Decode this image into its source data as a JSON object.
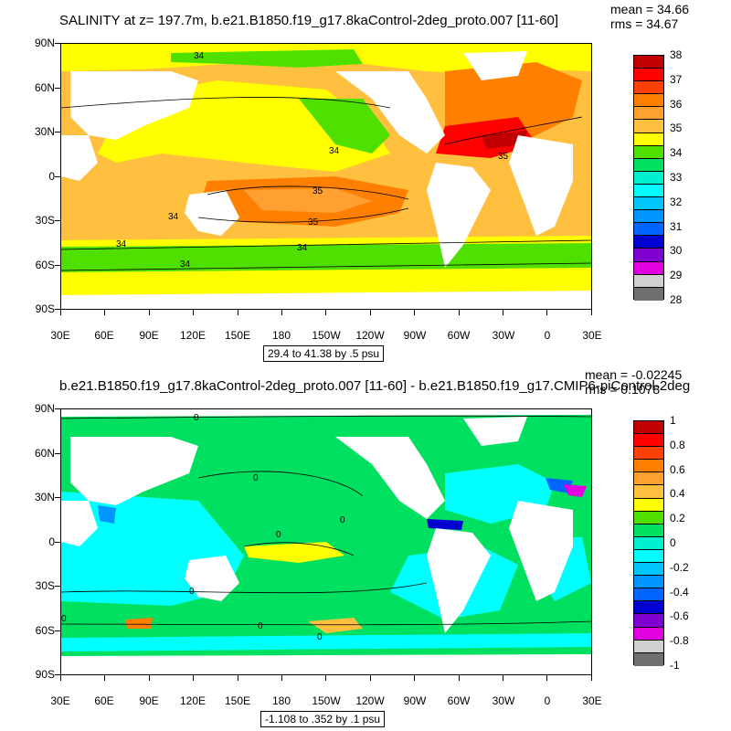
{
  "panel_top": {
    "title": "SALINITY at z= 197.7m, b.e21.B1850.f19_g17.8kaControl-2deg_proto.007 [11-60]",
    "mean_label": "mean = 34.66",
    "rms_label": "rms = 34.67",
    "range_label": "29.4 to 41.38 by .5 psu",
    "y_ticks": [
      "90N",
      "60N",
      "30N",
      "0",
      "30S",
      "60S",
      "90S"
    ],
    "x_ticks": [
      "30E",
      "60E",
      "90E",
      "120E",
      "150E",
      "180",
      "150W",
      "120W",
      "90W",
      "60W",
      "30W",
      "0",
      "30E"
    ],
    "colorbar": {
      "labels": [
        "38",
        "37",
        "36",
        "35",
        "34",
        "33",
        "32",
        "31",
        "30",
        "29",
        "28"
      ],
      "colors": [
        "#c00000",
        "#ff0000",
        "#ff4000",
        "#ff8000",
        "#ffa030",
        "#ffc040",
        "#ffff00",
        "#50e000",
        "#00e060",
        "#00f0d0",
        "#00ffff",
        "#00c8ff",
        "#0096ff",
        "#0064ff",
        "#0000d0",
        "#8000d0",
        "#e000e0",
        "#d0d0d0",
        "#707070"
      ]
    },
    "contour_labels": [
      "34",
      "34",
      "35",
      "35",
      "35",
      "34",
      "34",
      "34",
      "34"
    ]
  },
  "panel_bottom": {
    "title": "b.e21.B1850.f19_g17.8kaControl-2deg_proto.007 [11-60] - b.e21.B1850.f19_g17.CMIP6-piControl-2deg",
    "mean_label": "mean = -0.02245",
    "rms_label": "rms = 0.1078",
    "range_label": "-1.108 to .352 by .1 psu",
    "y_ticks": [
      "90N",
      "60N",
      "30N",
      "0",
      "30S",
      "60S",
      "90S"
    ],
    "x_ticks": [
      "30E",
      "60E",
      "90E",
      "120E",
      "150E",
      "180",
      "150W",
      "120W",
      "90W",
      "60W",
      "30W",
      "0",
      "30E"
    ],
    "colorbar": {
      "labels": [
        "1",
        "0.8",
        "0.6",
        "0.4",
        "0.2",
        "0",
        "-0.2",
        "-0.4",
        "-0.6",
        "-0.8",
        "-1"
      ],
      "colors": [
        "#c00000",
        "#ff0000",
        "#ff4000",
        "#ff8000",
        "#ffa030",
        "#ffc040",
        "#ffff00",
        "#50e000",
        "#00e060",
        "#00f0d0",
        "#00ffff",
        "#00c8ff",
        "#0096ff",
        "#0064ff",
        "#0000d0",
        "#8000d0",
        "#e000e0",
        "#d0d0d0",
        "#707070"
      ]
    },
    "contour_labels": [
      "0",
      "0",
      "0",
      "0",
      "0",
      "0",
      "0",
      "0"
    ]
  }
}
